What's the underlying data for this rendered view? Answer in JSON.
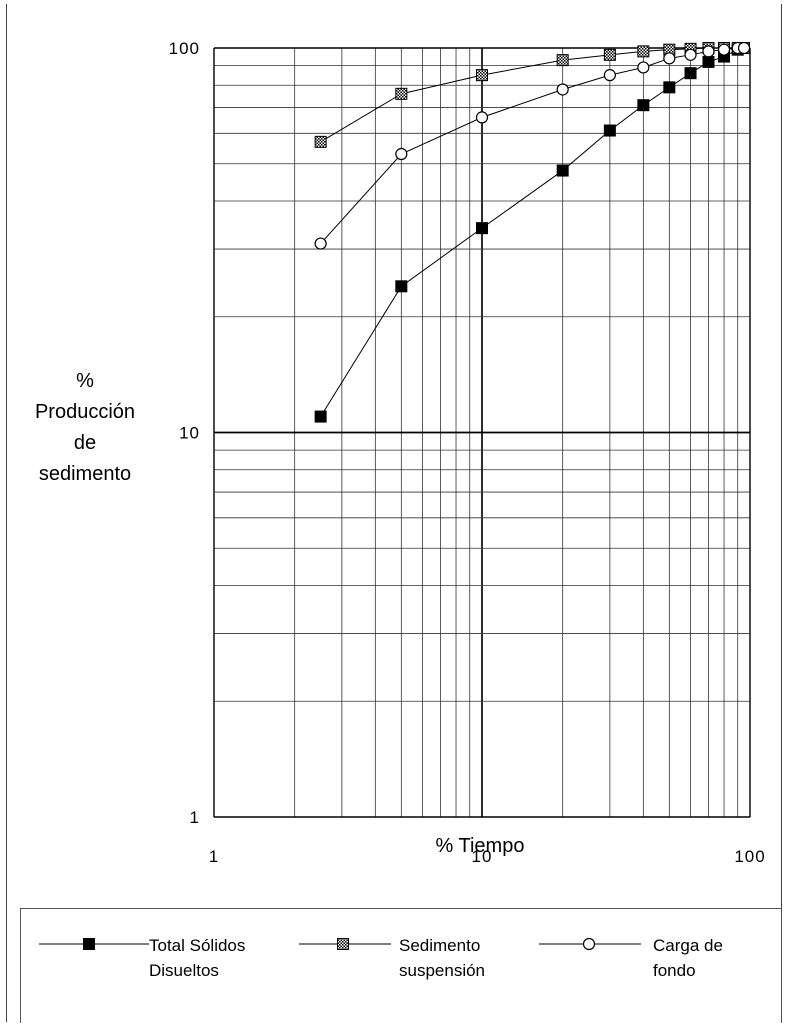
{
  "chart_data": {
    "type": "line",
    "ylabel_lines": [
      "%",
      "Producción",
      "de",
      "sedimento"
    ],
    "xlabel": "% Tiempo",
    "x_scale": "log",
    "y_scale": "log",
    "xlim": [
      1,
      100
    ],
    "ylim": [
      1,
      100
    ],
    "x_ticks": [
      1,
      10,
      100
    ],
    "x_tick_labels": [
      "1",
      "10",
      "100"
    ],
    "y_ticks": [
      1,
      10,
      100
    ],
    "y_tick_labels": [
      "1",
      "10",
      "100"
    ],
    "grid": true,
    "legend_position": "bottom",
    "series": [
      {
        "name_lines": [
          "Total Sólidos",
          "Disueltos"
        ],
        "marker": "filled-square",
        "color": "#000000",
        "x": [
          2.5,
          5,
          10,
          20,
          30,
          40,
          50,
          60,
          70,
          80,
          90,
          95
        ],
        "y": [
          11,
          24,
          34,
          48,
          61,
          71,
          79,
          86,
          92,
          95,
          99,
          100
        ]
      },
      {
        "name_lines": [
          "Sedimento",
          "suspensión"
        ],
        "marker": "hatched-square",
        "color": "#888888",
        "x": [
          2.5,
          5,
          10,
          20,
          30,
          40,
          50,
          60,
          70,
          80,
          90,
          95
        ],
        "y": [
          57,
          76,
          85,
          93,
          96,
          98,
          99,
          99.5,
          100,
          100,
          100,
          100
        ]
      },
      {
        "name_lines": [
          "Carga de",
          "fondo"
        ],
        "marker": "open-circle",
        "color": "#ffffff",
        "x": [
          2.5,
          5,
          10,
          20,
          30,
          40,
          50,
          60,
          70,
          80,
          90,
          95
        ],
        "y": [
          31,
          53,
          66,
          78,
          85,
          89,
          94,
          96,
          98,
          99,
          100,
          100
        ]
      }
    ]
  }
}
